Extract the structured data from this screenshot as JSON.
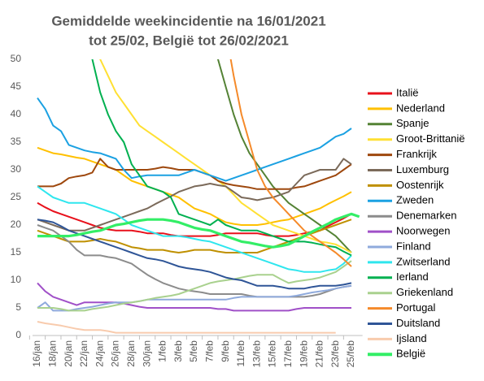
{
  "chart_data": {
    "type": "line",
    "title": [
      "Gemiddelde weekincidentie  na 16/01/2021",
      "tot 25/02, België tot 26/02/2021"
    ],
    "categories": [
      "16/jan",
      null,
      "18/jan",
      null,
      "20/jan",
      null,
      "22/jan",
      null,
      "24/jan",
      null,
      "26/jan",
      null,
      "28/jan",
      null,
      "30/jan",
      null,
      "1/feb",
      null,
      "3/feb",
      null,
      "5/feb",
      null,
      "7/feb",
      null,
      "9/feb",
      null,
      "11/feb",
      null,
      "13/feb",
      null,
      "15/feb",
      null,
      "17/feb",
      null,
      "19/feb",
      null,
      "21/feb",
      null,
      "23/feb",
      null,
      "25/feb",
      null
    ],
    "ylim": [
      0,
      50
    ],
    "yticks": [
      0,
      5,
      10,
      15,
      20,
      25,
      30,
      35,
      40,
      45,
      50
    ],
    "grid": false,
    "legend": "right",
    "series": [
      {
        "name": "Italië",
        "color": "#e8101b",
        "values": [
          24,
          23.2,
          22.5,
          22,
          21.5,
          21,
          20.5,
          20,
          19.5,
          19.2,
          19,
          19,
          19,
          18.8,
          18.5,
          18.5,
          18.5,
          18.2,
          18,
          18,
          18,
          18,
          18,
          18.2,
          18.5,
          18.5,
          18.5,
          18.5,
          18.5,
          18.2,
          18,
          18,
          18,
          18.2,
          18.5,
          18.8,
          19,
          19.8,
          20.5,
          21.2,
          22,
          null
        ]
      },
      {
        "name": "Nederland",
        "color": "#ffc000",
        "values": [
          34,
          33.5,
          33,
          32.8,
          32.5,
          32.2,
          32,
          31.5,
          31,
          30.5,
          30,
          29,
          28,
          27.5,
          27,
          26.5,
          26,
          25.5,
          25,
          24,
          23,
          22.5,
          22,
          21.2,
          20.5,
          20.2,
          20,
          20,
          20,
          20.2,
          20.5,
          20.8,
          21,
          21.5,
          22,
          22.5,
          23,
          23.8,
          24.5,
          25.2,
          26,
          null
        ]
      },
      {
        "name": "Spanje",
        "color": "#548235",
        "values": [
          null,
          null,
          null,
          null,
          null,
          null,
          null,
          null,
          null,
          null,
          null,
          null,
          null,
          null,
          null,
          null,
          null,
          null,
          null,
          null,
          null,
          null,
          55,
          50,
          45,
          40,
          36,
          33,
          31,
          29,
          27,
          25.5,
          24,
          23,
          22,
          21,
          20,
          19,
          18,
          16.5,
          15,
          null
        ]
      },
      {
        "name": "Groot-Brittanië",
        "color": "#ffe033",
        "values": [
          null,
          null,
          null,
          null,
          null,
          null,
          null,
          53,
          50,
          47,
          44,
          42,
          40,
          38,
          37,
          36,
          35,
          34,
          33,
          32,
          31,
          30,
          29,
          28,
          27,
          25.5,
          24,
          23,
          22,
          21,
          20,
          19.5,
          19,
          18.5,
          18,
          17.5,
          17,
          16.8,
          16.5,
          15.8,
          15,
          null
        ]
      },
      {
        "name": "Frankrijk",
        "color": "#9e480e",
        "values": [
          27,
          27,
          27,
          27.5,
          28.5,
          28.8,
          29,
          29.5,
          32,
          30.5,
          30,
          30,
          30,
          30,
          30,
          30.2,
          30.5,
          30.3,
          30,
          30,
          30,
          29.5,
          29,
          28,
          27.5,
          27.2,
          27,
          26.8,
          26.5,
          26.5,
          26.5,
          26.5,
          26.5,
          26.8,
          27,
          27.5,
          28,
          28.5,
          29,
          30,
          31,
          null
        ]
      },
      {
        "name": "Luxemburg",
        "color": "#7b6a5a",
        "values": [
          21,
          20.5,
          20,
          19.5,
          19,
          19,
          19,
          19.5,
          20,
          20.5,
          21,
          21.5,
          22,
          22.5,
          23,
          23.8,
          24.5,
          25.2,
          26,
          26.5,
          27,
          27.2,
          27.5,
          27.2,
          27,
          26,
          25,
          24.8,
          24.5,
          24.8,
          25,
          25.5,
          26,
          27.5,
          29,
          29.5,
          30,
          30,
          30,
          32,
          31,
          null
        ]
      },
      {
        "name": "Oostenrijk",
        "color": "#bf9000",
        "values": [
          19,
          18.5,
          18,
          17.5,
          17,
          17,
          17,
          17.2,
          17.5,
          17.2,
          17,
          16.5,
          16,
          15.8,
          15.5,
          15.5,
          15.5,
          15.2,
          15,
          15.2,
          15.5,
          15.5,
          15.5,
          15.2,
          15,
          15,
          15,
          15,
          15,
          15.5,
          16,
          16.5,
          17,
          17.5,
          18,
          18.5,
          19,
          19.5,
          20,
          20.5,
          21,
          null
        ]
      },
      {
        "name": "Zweden",
        "color": "#1ba1e2",
        "values": [
          43,
          41,
          38,
          37,
          34.5,
          34,
          33.5,
          33.2,
          33,
          32.5,
          32,
          30,
          28.5,
          28.8,
          29,
          29,
          29,
          29,
          29,
          29.5,
          30,
          29.5,
          29,
          28.5,
          28,
          28.5,
          29,
          29.5,
          30,
          30.5,
          31,
          31.5,
          32,
          32.5,
          33,
          33.5,
          34,
          35,
          36,
          36.5,
          37.5,
          null
        ]
      },
      {
        "name": "Denemarken",
        "color": "#8c8c8c",
        "values": [
          20,
          19.5,
          19,
          18,
          17,
          15.5,
          14.5,
          14.5,
          14.5,
          14.2,
          14,
          13.5,
          13,
          12,
          11,
          10.2,
          9.5,
          9,
          8.5,
          8.2,
          8,
          7.8,
          7.5,
          7.5,
          7.5,
          7.5,
          7.5,
          7.2,
          7,
          7,
          7,
          7,
          7,
          7,
          7,
          7.2,
          7.5,
          8,
          8.5,
          8.8,
          9,
          null
        ]
      },
      {
        "name": "Noorwegen",
        "color": "#a050c8",
        "values": [
          9.5,
          8,
          7,
          6.5,
          6,
          5.5,
          6,
          6,
          6,
          6,
          6,
          5.8,
          5.5,
          5.2,
          5,
          5,
          5,
          5,
          5,
          5,
          5,
          5,
          5,
          4.8,
          4.8,
          4.5,
          4.5,
          4.5,
          4.5,
          4.5,
          4.5,
          4.5,
          4.5,
          4.8,
          5,
          5,
          5,
          5,
          5,
          5,
          5,
          null
        ]
      },
      {
        "name": "Finland",
        "color": "#8faadc",
        "values": [
          5,
          6,
          4.5,
          4.5,
          4.5,
          4.8,
          5,
          5.2,
          5.5,
          5.8,
          6,
          6,
          6,
          6.2,
          6.5,
          6.5,
          6.5,
          6.5,
          6.5,
          6.5,
          6.5,
          6.5,
          6.5,
          6.5,
          6.5,
          6.8,
          7,
          7,
          7,
          7,
          7,
          7,
          7,
          7.2,
          7.5,
          7.8,
          8,
          8.2,
          8.5,
          8.8,
          9,
          null
        ]
      },
      {
        "name": "Zwitserland",
        "color": "#2fe6ee",
        "values": [
          27,
          26,
          25,
          24.5,
          24,
          24,
          24,
          23.5,
          23,
          22.5,
          22,
          21,
          20,
          19.5,
          19,
          18.5,
          18,
          18,
          18,
          17.8,
          17.5,
          17.2,
          17,
          16.5,
          16,
          15.5,
          15,
          14.5,
          14,
          13.5,
          13,
          12.5,
          12,
          11.8,
          11.5,
          11.5,
          11.5,
          11.8,
          12,
          13,
          14.5,
          null
        ]
      },
      {
        "name": "Ierland",
        "color": "#00b050",
        "values": [
          null,
          null,
          null,
          null,
          null,
          null,
          54,
          50,
          44,
          40,
          37,
          35,
          31,
          29,
          27,
          26.5,
          26,
          25,
          22,
          21.5,
          21,
          20.5,
          20,
          21,
          20,
          19.5,
          19,
          19,
          19,
          18.5,
          18,
          17.5,
          17,
          17,
          17,
          16.8,
          16.5,
          16.2,
          16,
          15.2,
          14.5,
          null
        ]
      },
      {
        "name": "Griekenland",
        "color": "#a9d18e",
        "values": [
          5,
          5,
          5,
          4.8,
          4.5,
          4.5,
          4.5,
          4.8,
          5,
          5.2,
          5.5,
          5.8,
          6,
          6.2,
          6.5,
          6.8,
          7,
          7.2,
          7.5,
          8,
          8.5,
          9,
          9.5,
          9.8,
          10,
          10.2,
          10.5,
          10.8,
          11,
          11,
          11,
          10.2,
          9.5,
          9.8,
          10,
          10.2,
          10.5,
          11,
          11.5,
          12.5,
          13.5,
          null
        ]
      },
      {
        "name": "Portugal",
        "color": "#f58a2a",
        "values": [
          null,
          null,
          null,
          null,
          null,
          null,
          null,
          null,
          null,
          null,
          null,
          null,
          null,
          null,
          null,
          null,
          null,
          null,
          null,
          null,
          null,
          null,
          null,
          null,
          55,
          47,
          40,
          35,
          30,
          27,
          25,
          23.5,
          22,
          20.5,
          19,
          18,
          17,
          16,
          15,
          13.8,
          12.5,
          null
        ]
      },
      {
        "name": "Duitsland",
        "color": "#2f5597",
        "values": [
          21,
          20.8,
          20.5,
          19.8,
          19,
          18.5,
          18,
          17.5,
          17,
          16.5,
          16,
          15.5,
          15,
          14.5,
          14,
          13.8,
          13.5,
          13,
          12.5,
          12.2,
          12,
          11.8,
          11.5,
          11,
          10.5,
          10.2,
          10,
          9.5,
          9,
          9,
          9,
          8.8,
          8.5,
          8.5,
          8.5,
          8.8,
          9,
          9,
          9,
          9.2,
          9.5,
          null
        ]
      },
      {
        "name": "Ijsland",
        "color": "#f8cbad",
        "values": [
          2.5,
          2.2,
          2,
          1.8,
          1.5,
          1.2,
          1,
          1,
          1,
          0.8,
          0.5,
          0.5,
          0.5,
          0.5,
          0.5,
          0.5,
          0.5,
          0.5,
          0.5,
          0.5,
          0.5,
          0.5,
          0.5,
          0.5,
          0.5,
          0.5,
          0.5,
          0.5,
          0.5,
          0.5,
          0.5,
          0.5,
          0.5,
          0.5,
          0.5,
          0.5,
          0.5,
          0.5,
          0.5,
          null,
          null,
          null
        ]
      },
      {
        "name": "België",
        "color": "#33ee66",
        "values": [
          18,
          18,
          18,
          18,
          18,
          18.2,
          18.5,
          18.8,
          19,
          19.5,
          20,
          20.2,
          20.5,
          20.8,
          21,
          21,
          21,
          20.8,
          20.5,
          20,
          19.5,
          19.2,
          19,
          18.5,
          18,
          17.5,
          17,
          16.8,
          16.5,
          16.2,
          16,
          16.2,
          16.5,
          17.2,
          18,
          18.8,
          19.5,
          20.2,
          21,
          21.5,
          22,
          21.5
        ]
      }
    ]
  }
}
